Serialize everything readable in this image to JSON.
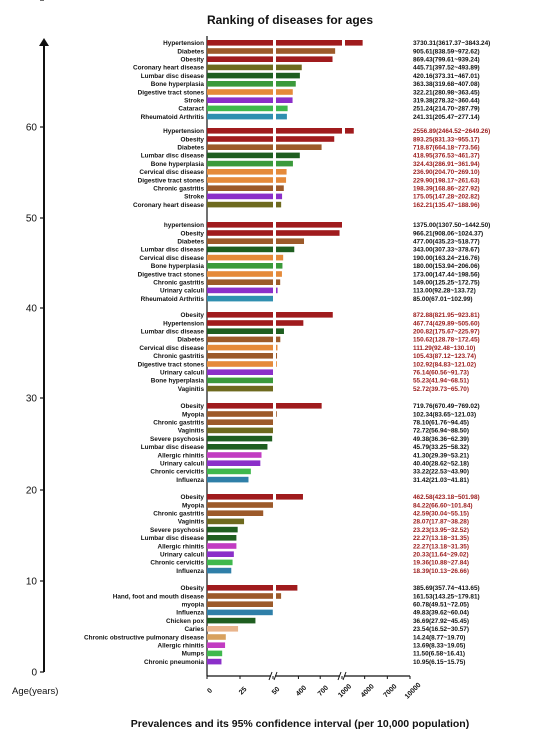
{
  "chart_data": {
    "type": "bar",
    "title": "Ranking of diseases for ages",
    "xlabel": "Prevalences and its 95% confidence interval (per 10,000 population)",
    "ylabel": "Age(years)",
    "y_ticks": [
      "0",
      "10",
      "20",
      "30",
      "40",
      "50",
      "60",
      "70"
    ],
    "x_ticks": [
      "0",
      "25",
      "50",
      "400",
      "700",
      "1000",
      "4000",
      "7000",
      "10000"
    ],
    "x_axis_segments": [
      [
        0,
        50
      ],
      [
        50,
        1000
      ],
      [
        1000,
        10000
      ]
    ],
    "colors": {
      "Hypertension": "#a01b1d",
      "hypertension": "#a01b1d",
      "Obesity": "#a01b1d",
      "Diabetes": "#9c5a2a",
      "Myopia": "#9c5a2a",
      "myopia": "#9c5a2a",
      "Hand, foot and mouth disease": "#9c5a2a",
      "Coronary heart disease": "#6e6a1e",
      "Chronic gastritis": "#9c5a2a",
      "Vaginitis": "#6e6a1e",
      "Influenza": "#2f7fa8",
      "Lumbar disc disease": "#1f5e20",
      "Severe psychosis": "#1f5e20",
      "Chicken pox": "#1f5e20",
      "Bone hyperplasia": "#3b9a3b",
      "Cervical disc disease": "#e58a3a",
      "Digestive tract stones": "#e58a3a",
      "Caries": "#e8b48c",
      "Stroke": "#8b2fc9",
      "Urinary calculi": "#8b2fc9",
      "Allergic rhinitis": "#c23cc2",
      "Cataract": "#3fb84d",
      "Chronic obstructive pulmonary disease": "#d8a15e",
      "Chronic cervicitis": "#3fb84d",
      "Mumps": "#3fb84d",
      "Rheumatoid Arthritis": "#2f8fb0",
      "Chronic pneumonia": "#8b2fc9"
    },
    "groups": [
      {
        "items": [
          {
            "name": "Hypertension",
            "value": 3730.31,
            "label": "3730.31(3617.37~3843.24)",
            "highlight": false
          },
          {
            "name": "Diabetes",
            "value": 905.61,
            "label": "905.61(838.59~972.62)",
            "highlight": false
          },
          {
            "name": "Obesity",
            "value": 869.43,
            "label": "869.43(799.61~939.24)",
            "highlight": false
          },
          {
            "name": "Coronary heart disease",
            "value": 445.71,
            "label": "445.71(397.52~493.89)",
            "highlight": false
          },
          {
            "name": "Lumbar disc disease",
            "value": 420.16,
            "label": "420.16(373.31~467.01)",
            "highlight": false
          },
          {
            "name": "Bone hyperplasia",
            "value": 363.38,
            "label": "363.38(319.68~407.08)",
            "highlight": false
          },
          {
            "name": "Digestive tract stones",
            "value": 322.21,
            "label": "322.21(280.98~363.45)",
            "highlight": false
          },
          {
            "name": "Stroke",
            "value": 319.38,
            "label": "319.38(278.32~360.44)",
            "highlight": false
          },
          {
            "name": "Cataract",
            "value": 251.24,
            "label": "251.24(214.70~287.79)",
            "highlight": false
          },
          {
            "name": "Rheumatoid Arthritis",
            "value": 241.31,
            "label": "241.31(205.47~277.14)",
            "highlight": false
          }
        ]
      },
      {
        "items": [
          {
            "name": "Hypertension",
            "value": 2556.89,
            "label": "2556.89(2464.52~2649.26)",
            "highlight": true
          },
          {
            "name": "Obesity",
            "value": 893.25,
            "label": "893.25(831.33~955.17)",
            "highlight": true
          },
          {
            "name": "Diabetes",
            "value": 718.87,
            "label": "718.87(664.18~773.56)",
            "highlight": true
          },
          {
            "name": "Lumbar disc disease",
            "value": 418.95,
            "label": "418.95(376.53~461.37)",
            "highlight": true
          },
          {
            "name": "Bone hyperplasia",
            "value": 324.43,
            "label": "324.43(286.91~361.94)",
            "highlight": true
          },
          {
            "name": "Cervical disc disease",
            "value": 236.9,
            "label": "236.90(204.70~269.10)",
            "highlight": true
          },
          {
            "name": "Digestive tract stones",
            "value": 229.9,
            "label": "229.90(198.17~261.63)",
            "highlight": true
          },
          {
            "name": "Chronic gastritis",
            "value": 198.39,
            "label": "198.39(168.86~227.92)",
            "highlight": true
          },
          {
            "name": "Stroke",
            "value": 175.05,
            "label": "175.05(147.28~202.82)",
            "highlight": true
          },
          {
            "name": "Coronary heart disease",
            "value": 162.21,
            "label": "162.21(135.47~188.96)",
            "highlight": true
          }
        ]
      },
      {
        "items": [
          {
            "name": "hypertension",
            "value": 1375.0,
            "label": "1375.00(1307.50~1442.50)",
            "highlight": false
          },
          {
            "name": "Obesity",
            "value": 966.21,
            "label": "966.21(908.06~1024.37)",
            "highlight": false
          },
          {
            "name": "Diabetes",
            "value": 477.0,
            "label": "477.00(435.23~518.77)",
            "highlight": false
          },
          {
            "name": "Lumbar disc disease",
            "value": 343.0,
            "label": "343.00(307.33~378.67)",
            "highlight": false
          },
          {
            "name": "Cervical disc disease",
            "value": 190.0,
            "label": "190.00(163.24~216.76)",
            "highlight": false
          },
          {
            "name": "Bone hyperplasia",
            "value": 180.0,
            "label": "180.00(153.94~206.06)",
            "highlight": false
          },
          {
            "name": "Digestive tract stones",
            "value": 173.0,
            "label": "173.00(147.44~198.56)",
            "highlight": false
          },
          {
            "name": "Chronic gastritis",
            "value": 149.0,
            "label": "149.00(125.25~172.75)",
            "highlight": false
          },
          {
            "name": "Urinary calculi",
            "value": 113.0,
            "label": "113.00(92.28~133.72)",
            "highlight": false
          },
          {
            "name": "Rheumatoid Arthritis",
            "value": 85.0,
            "label": "85.00(67.01~102.99)",
            "highlight": false
          }
        ]
      },
      {
        "items": [
          {
            "name": "Obesity",
            "value": 872.88,
            "label": "872.88(821.95~923.81)",
            "highlight": true
          },
          {
            "name": "Hypertension",
            "value": 467.74,
            "label": "467.74(429.89~505.60)",
            "highlight": true
          },
          {
            "name": "Lumbar disc disease",
            "value": 200.82,
            "label": "200.82(175.67~225.97)",
            "highlight": true
          },
          {
            "name": "Diabetes",
            "value": 150.62,
            "label": "150.62(128.78~172.45)",
            "highlight": true
          },
          {
            "name": "Cervical disc disease",
            "value": 111.29,
            "label": "111.29(92.48~130.10)",
            "highlight": true
          },
          {
            "name": "Chronic gastritis",
            "value": 105.43,
            "label": "105.43(87.12~123.74)",
            "highlight": true
          },
          {
            "name": "Digestive tract stones",
            "value": 102.92,
            "label": "102.92(84.83~121.02)",
            "highlight": true
          },
          {
            "name": "Urinary calculi",
            "value": 76.14,
            "label": "76.14(60.56~91.73)",
            "highlight": true
          },
          {
            "name": "Bone hyperplasia",
            "value": 55.23,
            "label": "55.23(41.94~68.51)",
            "highlight": true
          },
          {
            "name": "Vaginitis",
            "value": 52.72,
            "label": "52.72(39.73~65.70)",
            "highlight": true
          }
        ]
      },
      {
        "items": [
          {
            "name": "Obesity",
            "value": 719.76,
            "label": "719.76(670.49~769.02)",
            "highlight": false
          },
          {
            "name": "Myopia",
            "value": 102.34,
            "label": "102.34(83.65~121.03)",
            "highlight": false
          },
          {
            "name": "Chronic gastritis",
            "value": 78.1,
            "label": "78.10(61.76~94.45)",
            "highlight": false
          },
          {
            "name": "Vaginitis",
            "value": 72.72,
            "label": "72.72(56.94~88.50)",
            "highlight": false
          },
          {
            "name": "Severe psychosis",
            "value": 49.38,
            "label": "49.38(36.36~62.39)",
            "highlight": false
          },
          {
            "name": "Lumbar disc disease",
            "value": 45.79,
            "label": "45.79(33.25~58.32)",
            "highlight": false
          },
          {
            "name": "Allergic rhinitis",
            "value": 41.3,
            "label": "41.30(29.39~53.21)",
            "highlight": false
          },
          {
            "name": "Urinary calculi",
            "value": 40.4,
            "label": "40.40(28.62~52.18)",
            "highlight": false
          },
          {
            "name": "Chronic cervicitis",
            "value": 33.22,
            "label": "33.22(22.53~43.90)",
            "highlight": false
          },
          {
            "name": "Influenza",
            "value": 31.42,
            "label": "31.42(21.03~41.81)",
            "highlight": false
          }
        ]
      },
      {
        "items": [
          {
            "name": "Obesity",
            "value": 462.58,
            "label": "462.58(423.18~501.98)",
            "highlight": true
          },
          {
            "name": "Myopia",
            "value": 84.22,
            "label": "84.22(66.60~101.84)",
            "highlight": true
          },
          {
            "name": "Chronic gastritis",
            "value": 42.59,
            "label": "42.59(30.04~55.15)",
            "highlight": true
          },
          {
            "name": "Vaginitis",
            "value": 28.07,
            "label": "28.07(17.87~38.28)",
            "highlight": true
          },
          {
            "name": "Severe psychosis",
            "value": 23.23,
            "label": "23.23(13.95~32.52)",
            "highlight": true
          },
          {
            "name": "Lumbar disc disease",
            "value": 22.27,
            "label": "22.27(13.18~31.35)",
            "highlight": true
          },
          {
            "name": "Allergic rhinitis",
            "value": 22.27,
            "label": "22.27(13.18~31.35)",
            "highlight": true
          },
          {
            "name": "Urinary calculi",
            "value": 20.33,
            "label": "20.33(11.64~29.02)",
            "highlight": true
          },
          {
            "name": "Chronic cervicitis",
            "value": 19.36,
            "label": "19.36(10.88~27.84)",
            "highlight": true
          },
          {
            "name": "Influenza",
            "value": 18.39,
            "label": "18.39(10.13~26.66)",
            "highlight": true
          }
        ]
      },
      {
        "items": [
          {
            "name": "Obesity",
            "value": 385.69,
            "label": "385.69(357.74~413.65)",
            "highlight": false
          },
          {
            "name": "Hand, foot and mouth disease",
            "value": 161.53,
            "label": "161.53(143.25~179.81)",
            "highlight": false
          },
          {
            "name": "myopia",
            "value": 60.78,
            "label": "60.78(49.51~72.05)",
            "highlight": false
          },
          {
            "name": "Influenza",
            "value": 49.83,
            "label": "49.83(39.62~60.04)",
            "highlight": false
          },
          {
            "name": "Chicken pox",
            "value": 36.69,
            "label": "36.69(27.92~45.45)",
            "highlight": false
          },
          {
            "name": "Caries",
            "value": 23.54,
            "label": "23.54(16.52~30.57)",
            "highlight": false
          },
          {
            "name": "Chronic obstructive pulmonary disease",
            "value": 14.24,
            "label": "14.24(8.77~19.70)",
            "highlight": false
          },
          {
            "name": "Allergic rhinitis",
            "value": 13.69,
            "label": "13.69(8.33~19.05)",
            "highlight": false
          },
          {
            "name": "Mumps",
            "value": 11.5,
            "label": "11.50(6.58~16.41)",
            "highlight": false
          },
          {
            "name": "Chronic pneumonia",
            "value": 10.95,
            "label": "10.95(6.15~15.75)",
            "highlight": false
          }
        ]
      }
    ]
  }
}
